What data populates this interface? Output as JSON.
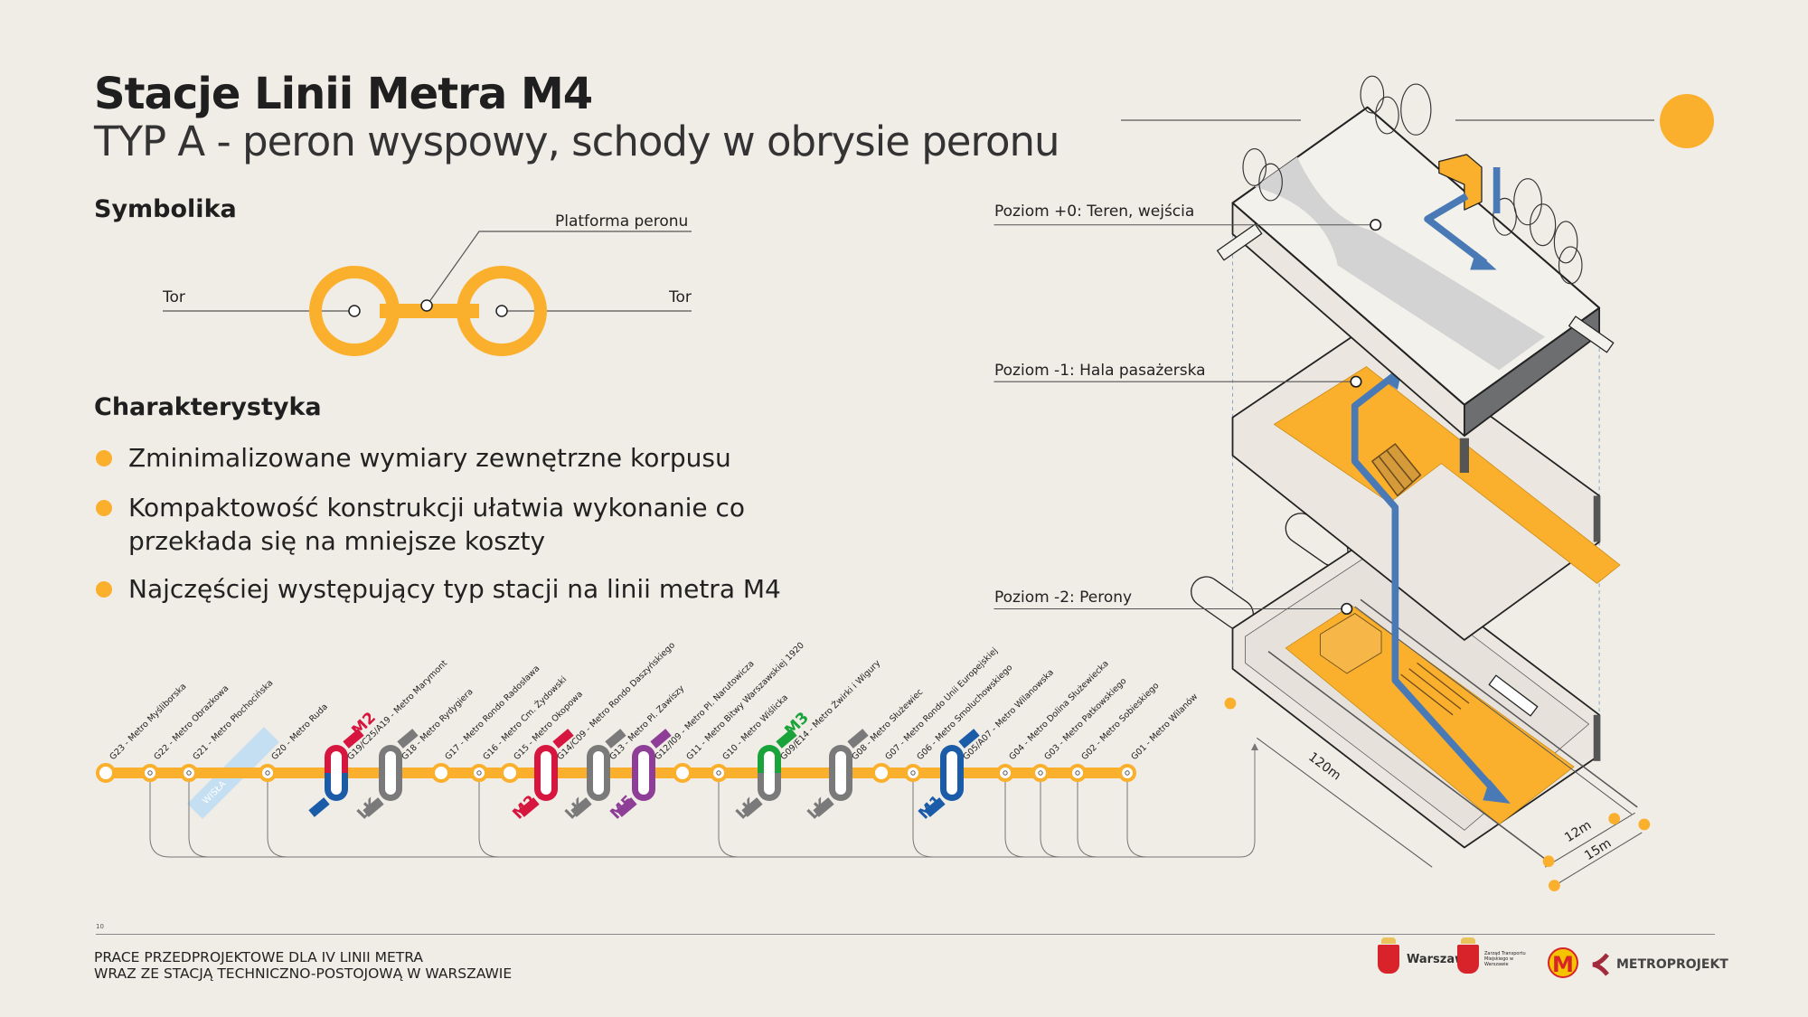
{
  "header": {
    "title": "Stacje Linii Metra M4",
    "subtitle": "TYP A - peron wyspowy, schody w obrysie peronu"
  },
  "symbolika": {
    "heading": "Symbolika",
    "platform_label": "Platforma peronu",
    "track_left": "Tor",
    "track_right": "Tor"
  },
  "charakterystyka": {
    "heading": "Charakterystyka",
    "bullets": [
      "Zminimalizowane wymiary zewnętrzne korpusu",
      "Kompaktowość konstrukcji ułatwia wykonanie co przekłada się na mniejsze koszty",
      "Najczęściej występujący typ stacji na linii metra M4"
    ]
  },
  "levels": {
    "level0": "Poziom +0: Teren, wejścia",
    "level1": "Poziom -1: Hala pasażerska",
    "level2": "Poziom -2: Perony",
    "length": "120m",
    "width_inner": "12m",
    "width_outer": "15m"
  },
  "line_map": {
    "river": "WISŁA",
    "line_color": "#fbb02d",
    "stations": [
      {
        "label": "G23 - Metro Myśliborska",
        "type": "stop"
      },
      {
        "label": "G22 - Metro Obrazkowa",
        "type": "dot"
      },
      {
        "label": "G21 - Metro Płochocińska",
        "type": "dot"
      },
      {
        "label": "G20 - Metro Ruda",
        "type": "dot"
      },
      {
        "label": "G19/C25/A19 - Metro Marymont",
        "type": "interchange",
        "top": "#d6163f",
        "bottom": "#1a5ca8",
        "top_label": "M2",
        "bottom_label": ""
      },
      {
        "label": "G18 - Metro Rydygiera",
        "type": "interchange",
        "top": "#7a7a7a",
        "bottom": "#7a7a7a",
        "top_label": "",
        "bottom_label": "LK"
      },
      {
        "label": "G17 - Metro Rondo Radosława",
        "type": "stop"
      },
      {
        "label": "G16 - Metro Cm. Żydowski",
        "type": "dot"
      },
      {
        "label": "G15 - Metro Okopowa",
        "type": "stop"
      },
      {
        "label": "G14/C09 - Metro Rondo Daszyńskiego",
        "type": "interchange",
        "top": "#d6163f",
        "bottom": "#d6163f",
        "top_label": "",
        "bottom_label": "M2"
      },
      {
        "label": "G13 - Metro Pl. Zawiszy",
        "type": "interchange",
        "top": "#7a7a7a",
        "bottom": "#7a7a7a",
        "top_label": "",
        "bottom_label": "LK"
      },
      {
        "label": "G12/I09 - Metro Pl. Narutowicza",
        "type": "interchange",
        "top": "#8e3e96",
        "bottom": "#8e3e96",
        "top_label": "",
        "bottom_label": "M5"
      },
      {
        "label": "G11 - Metro Bitwy Warszawskiej 1920",
        "type": "stop"
      },
      {
        "label": "G10 - Metro Wiślicka",
        "type": "dot"
      },
      {
        "label": "G09/E14 - Metro Żwirki i Wigury",
        "type": "interchange",
        "top": "#1aa33a",
        "bottom": "#7a7a7a",
        "top_label": "M3",
        "bottom_label": "LK"
      },
      {
        "label": "G08 - Metro Służewiec",
        "type": "interchange",
        "top": "#7a7a7a",
        "bottom": "#7a7a7a",
        "top_label": "",
        "bottom_label": "LK"
      },
      {
        "label": "G07 - Metro Rondo Unii Europejskiej",
        "type": "stop"
      },
      {
        "label": "G06 - Metro Smoluchowskiego",
        "type": "dot"
      },
      {
        "label": "G05/A07 - Metro Wilanowska",
        "type": "interchange",
        "top": "#1a5ca8",
        "bottom": "#1a5ca8",
        "top_label": "",
        "bottom_label": "M1"
      },
      {
        "label": "G04 - Metro Dolina Służewiecka",
        "type": "dot"
      },
      {
        "label": "G03 - Metro Patkowskiego",
        "type": "dot"
      },
      {
        "label": "G02 - Metro Sobieskiego",
        "type": "dot"
      },
      {
        "label": "G01 - Metro Wilanów",
        "type": "dot"
      }
    ]
  },
  "footer": {
    "page_number": "10",
    "line1": "PRACE PRZEDPROJEKTOWE DLA IV LINII METRA",
    "line2": "WRAZ ZE STACJĄ TECHNICZNO-POSTOJOWĄ W WARSZAWIE"
  },
  "logos": {
    "warszawa": "Warszawa",
    "ztm": "Zarząd Transportu Miejskiego w Warszawie",
    "metro": "M",
    "metroprojekt": "METROPROJEKT"
  },
  "colors": {
    "accent": "#fbb02d",
    "blue": "#4a7ab5",
    "background": "#f0ece6"
  }
}
